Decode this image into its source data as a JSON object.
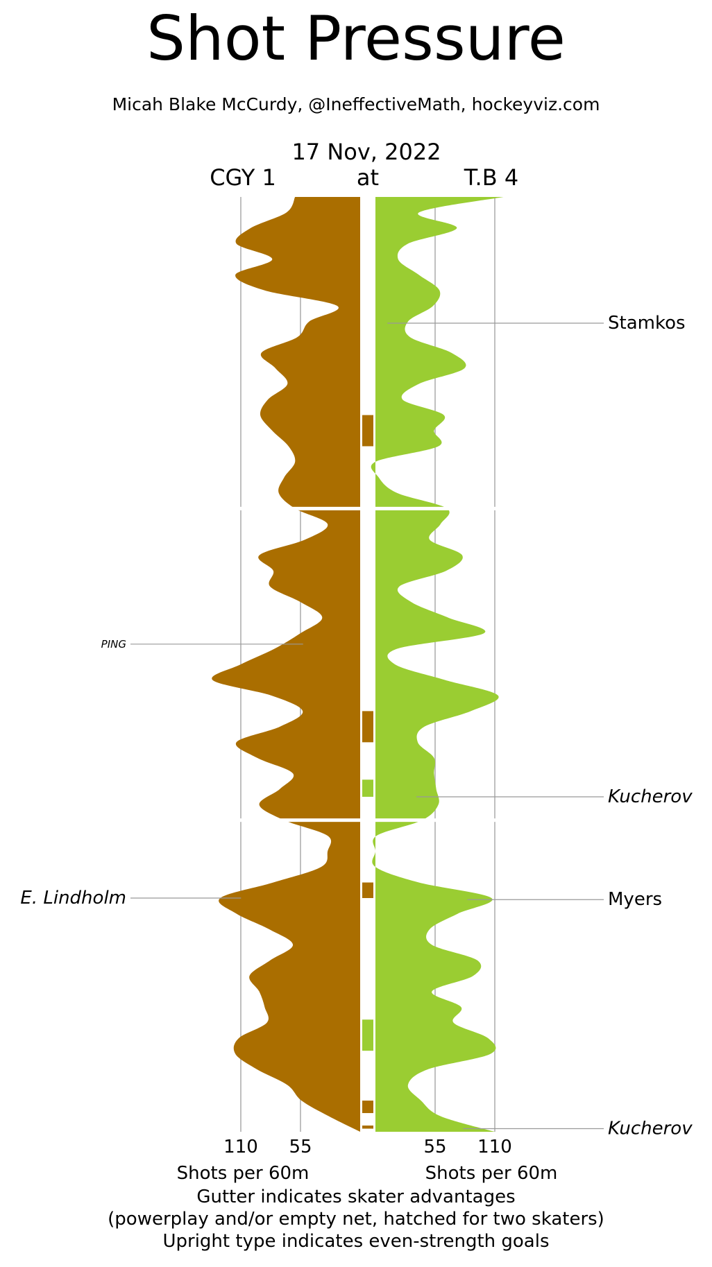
{
  "header": {
    "title": "Shot Pressure",
    "credit": "Micah Blake McCurdy, @IneffectiveMath, hockeyviz.com",
    "date": "17 Nov, 2022",
    "away": "CGY 1",
    "at": "at",
    "home": "T.B 4"
  },
  "footer": {
    "line1": "Gutter indicates skater advantages",
    "line2": "(powerplay and/or empty net, hatched for two skaters)",
    "line3": "Upright type indicates even-strength goals"
  },
  "colors": {
    "away": "#AA6E00",
    "home": "#9ACD32",
    "grid": "#aaaaaa",
    "leader": "#999999"
  },
  "chart_data": {
    "type": "area",
    "orientation": "vertical, mirrored",
    "x_unit": "Shots per 60m",
    "x_ticks": [
      110,
      55
    ],
    "xlabel_away": "Shots per 60m",
    "xlabel_home": "Shots per 60m",
    "time_range_minutes": [
      0,
      60
    ],
    "period_boundaries_minutes": [
      20,
      40
    ],
    "series": [
      {
        "name": "CGY",
        "side": "left",
        "minutes": [
          0,
          1,
          2,
          3,
          4,
          5,
          6,
          7,
          8,
          9,
          10,
          11,
          12,
          13,
          14,
          15,
          16,
          17,
          18,
          19,
          20,
          21,
          22,
          23,
          24,
          25,
          26,
          27,
          28,
          29,
          30,
          31,
          32,
          33,
          34,
          35,
          36,
          37,
          38,
          39,
          40,
          41,
          42,
          43,
          44,
          45,
          46,
          47,
          48,
          49,
          50,
          51,
          52,
          53,
          54,
          55,
          56,
          57,
          58,
          59,
          60
        ],
        "values": [
          60,
          68,
          101,
          114,
          81,
          115,
          88,
          21,
          47,
          58,
          91,
          78,
          67,
          85,
          92,
          81,
          66,
          60,
          70,
          75,
          60,
          30,
          51,
          93,
          80,
          83,
          55,
          35,
          55,
          79,
          110,
          136,
          82,
          53,
          74,
          114,
          95,
          62,
          74,
          93,
          70,
          30,
          30,
          36,
          80,
          129,
          114,
          84,
          62,
          83,
          102,
          93,
          88,
          86,
          112,
          115,
          95,
          67,
          54,
          29,
          0
        ]
      },
      {
        "name": "T.B",
        "side": "right",
        "minutes": [
          0,
          1,
          2,
          3,
          4,
          5,
          6,
          7,
          8,
          9,
          10,
          11,
          12,
          13,
          14,
          15,
          16,
          17,
          18,
          19,
          20,
          21,
          22,
          23,
          24,
          25,
          26,
          27,
          28,
          29,
          30,
          31,
          32,
          33,
          34,
          35,
          36,
          37,
          38,
          39,
          40,
          41,
          42,
          43,
          44,
          45,
          46,
          47,
          48,
          49,
          50,
          51,
          52,
          53,
          54,
          55,
          56,
          57,
          58,
          59,
          60
        ],
        "values": [
          118,
          40,
          75,
          30,
          21,
          40,
          59,
          53,
          30,
          32,
          70,
          82,
          40,
          25,
          63,
          54,
          58,
          0,
          3,
          20,
          66,
          60,
          50,
          80,
          65,
          22,
          33,
          67,
          100,
          20,
          18,
          64,
          113,
          88,
          45,
          39,
          54,
          54,
          56,
          58,
          43,
          1,
          0,
          0,
          40,
          107,
          76,
          50,
          52,
          94,
          90,
          52,
          79,
          72,
          104,
          106,
          48,
          30,
          42,
          60,
          110
        ]
      }
    ],
    "gutter_advantages": [
      {
        "team": "CGY",
        "start_minute": 14.0,
        "end_minute": 16.0
      },
      {
        "team": "CGY",
        "start_minute": 33.0,
        "end_minute": 35.0
      },
      {
        "team": "T.B",
        "start_minute": 37.4,
        "end_minute": 38.5
      },
      {
        "team": "CGY",
        "start_minute": 44.0,
        "end_minute": 45.0
      },
      {
        "team": "T.B",
        "start_minute": 52.8,
        "end_minute": 54.8
      },
      {
        "team": "CGY",
        "start_minute": 58.0,
        "end_minute": 58.8
      },
      {
        "team": "CGY",
        "start_minute": 59.6,
        "end_minute": 59.8
      }
    ],
    "annotations": [
      {
        "label": "Stamkos",
        "side": "right",
        "minute": 8.1,
        "style": "upright"
      },
      {
        "label": "PING",
        "side": "left",
        "minute": 28.7,
        "style": "italic-small"
      },
      {
        "label": "Kucherov",
        "side": "right",
        "minute": 38.5,
        "style": "italic"
      },
      {
        "label": "E. Lindholm",
        "side": "left",
        "minute": 45.0,
        "style": "italic"
      },
      {
        "label": "Myers",
        "side": "right",
        "minute": 45.1,
        "style": "upright"
      },
      {
        "label": "Kucherov",
        "side": "right",
        "minute": 59.8,
        "style": "italic"
      }
    ]
  }
}
